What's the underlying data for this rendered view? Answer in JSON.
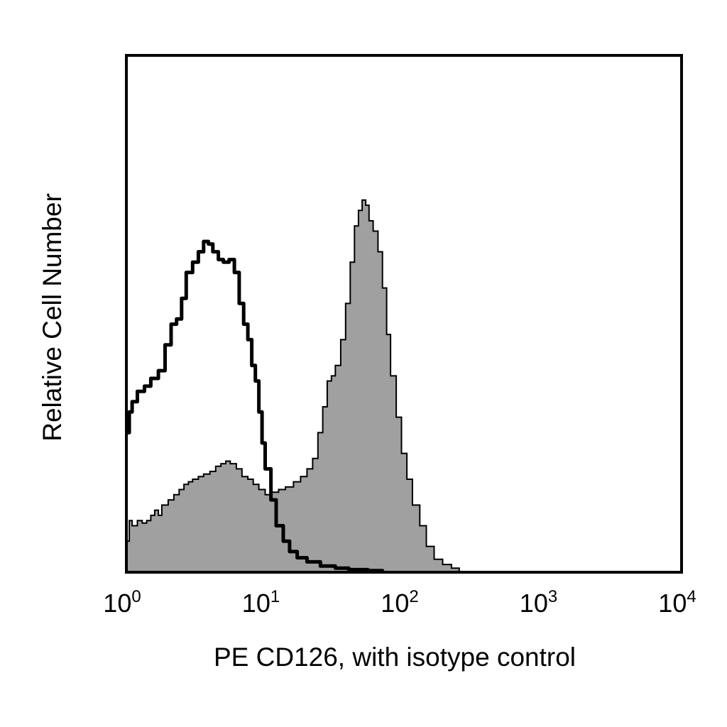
{
  "chart_data": {
    "type": "area",
    "xlabel": "PE CD126, with isotype control",
    "ylabel": "Relative Cell Number",
    "xscale": "log",
    "xlim": [
      1,
      10000
    ],
    "ylim": [
      0,
      100
    ],
    "grid": false,
    "legend": "none",
    "x_ticks": [
      {
        "base": "10",
        "exp": "0",
        "value": 1
      },
      {
        "base": "10",
        "exp": "1",
        "value": 10
      },
      {
        "base": "10",
        "exp": "2",
        "value": 100
      },
      {
        "base": "10",
        "exp": "3",
        "value": 1000
      },
      {
        "base": "10",
        "exp": "4",
        "value": 10000
      }
    ],
    "series": [
      {
        "style": "filled",
        "fill": "#a0a0a0",
        "stroke": "#000000",
        "points": [
          [
            1.0,
            6
          ],
          [
            1.05,
            10
          ],
          [
            1.1,
            9
          ],
          [
            1.2,
            10
          ],
          [
            1.3,
            9.5
          ],
          [
            1.4,
            10
          ],
          [
            1.5,
            11
          ],
          [
            1.6,
            12
          ],
          [
            1.7,
            11
          ],
          [
            1.8,
            13
          ],
          [
            2.0,
            14
          ],
          [
            2.2,
            15
          ],
          [
            2.4,
            16
          ],
          [
            2.6,
            17
          ],
          [
            2.8,
            17.5
          ],
          [
            3.0,
            18
          ],
          [
            3.3,
            18.5
          ],
          [
            3.6,
            19
          ],
          [
            4.0,
            19.5
          ],
          [
            4.4,
            20.5
          ],
          [
            4.8,
            21
          ],
          [
            5.2,
            21.5
          ],
          [
            5.6,
            21
          ],
          [
            6.2,
            20
          ],
          [
            6.8,
            18.5
          ],
          [
            7.5,
            18
          ],
          [
            8.2,
            17
          ],
          [
            9.0,
            16
          ],
          [
            10.0,
            15
          ],
          [
            11.0,
            15.5
          ],
          [
            12.5,
            16
          ],
          [
            14.0,
            16.5
          ],
          [
            16.0,
            17.5
          ],
          [
            18.0,
            18.5
          ],
          [
            20.0,
            20
          ],
          [
            22.0,
            22
          ],
          [
            24.0,
            27
          ],
          [
            26.0,
            32
          ],
          [
            28.0,
            37
          ],
          [
            30.0,
            38
          ],
          [
            32.0,
            40
          ],
          [
            35.0,
            45
          ],
          [
            38.0,
            52
          ],
          [
            41.0,
            60
          ],
          [
            44.0,
            67
          ],
          [
            47.0,
            70
          ],
          [
            50.0,
            72
          ],
          [
            53.0,
            71
          ],
          [
            56.0,
            68
          ],
          [
            60.0,
            66
          ],
          [
            65.0,
            62
          ],
          [
            70.0,
            55
          ],
          [
            75.0,
            46
          ],
          [
            80.0,
            38
          ],
          [
            88.0,
            30
          ],
          [
            96.0,
            23
          ],
          [
            105.0,
            18
          ],
          [
            115.0,
            13
          ],
          [
            130.0,
            9
          ],
          [
            145.0,
            5
          ],
          [
            165.0,
            2.5
          ],
          [
            190.0,
            1.5
          ],
          [
            220.0,
            0.8
          ],
          [
            250.0,
            0
          ]
        ]
      },
      {
        "style": "line",
        "fill": "none",
        "stroke": "#000000",
        "points": [
          [
            1.0,
            27
          ],
          [
            1.05,
            31
          ],
          [
            1.1,
            33
          ],
          [
            1.2,
            35
          ],
          [
            1.35,
            36
          ],
          [
            1.5,
            37.5
          ],
          [
            1.7,
            39
          ],
          [
            1.9,
            44
          ],
          [
            2.1,
            48
          ],
          [
            2.3,
            49
          ],
          [
            2.5,
            53
          ],
          [
            2.7,
            58
          ],
          [
            3.0,
            60
          ],
          [
            3.3,
            62
          ],
          [
            3.6,
            64
          ],
          [
            3.9,
            63.5
          ],
          [
            4.2,
            62
          ],
          [
            4.6,
            60.5
          ],
          [
            5.0,
            60
          ],
          [
            5.5,
            60.5
          ],
          [
            6.0,
            58
          ],
          [
            6.5,
            52
          ],
          [
            7.0,
            48
          ],
          [
            7.5,
            45
          ],
          [
            8.0,
            40
          ],
          [
            8.5,
            37
          ],
          [
            9.0,
            31
          ],
          [
            9.5,
            25
          ],
          [
            10.0,
            20
          ],
          [
            11.0,
            14
          ],
          [
            12.0,
            9
          ],
          [
            13.5,
            6
          ],
          [
            15.0,
            4
          ],
          [
            17.0,
            2.8
          ],
          [
            20.0,
            2
          ],
          [
            25.0,
            1.2
          ],
          [
            32.0,
            0.8
          ],
          [
            40.0,
            0.5
          ],
          [
            55.0,
            0.3
          ],
          [
            70.0,
            0
          ]
        ]
      }
    ]
  }
}
